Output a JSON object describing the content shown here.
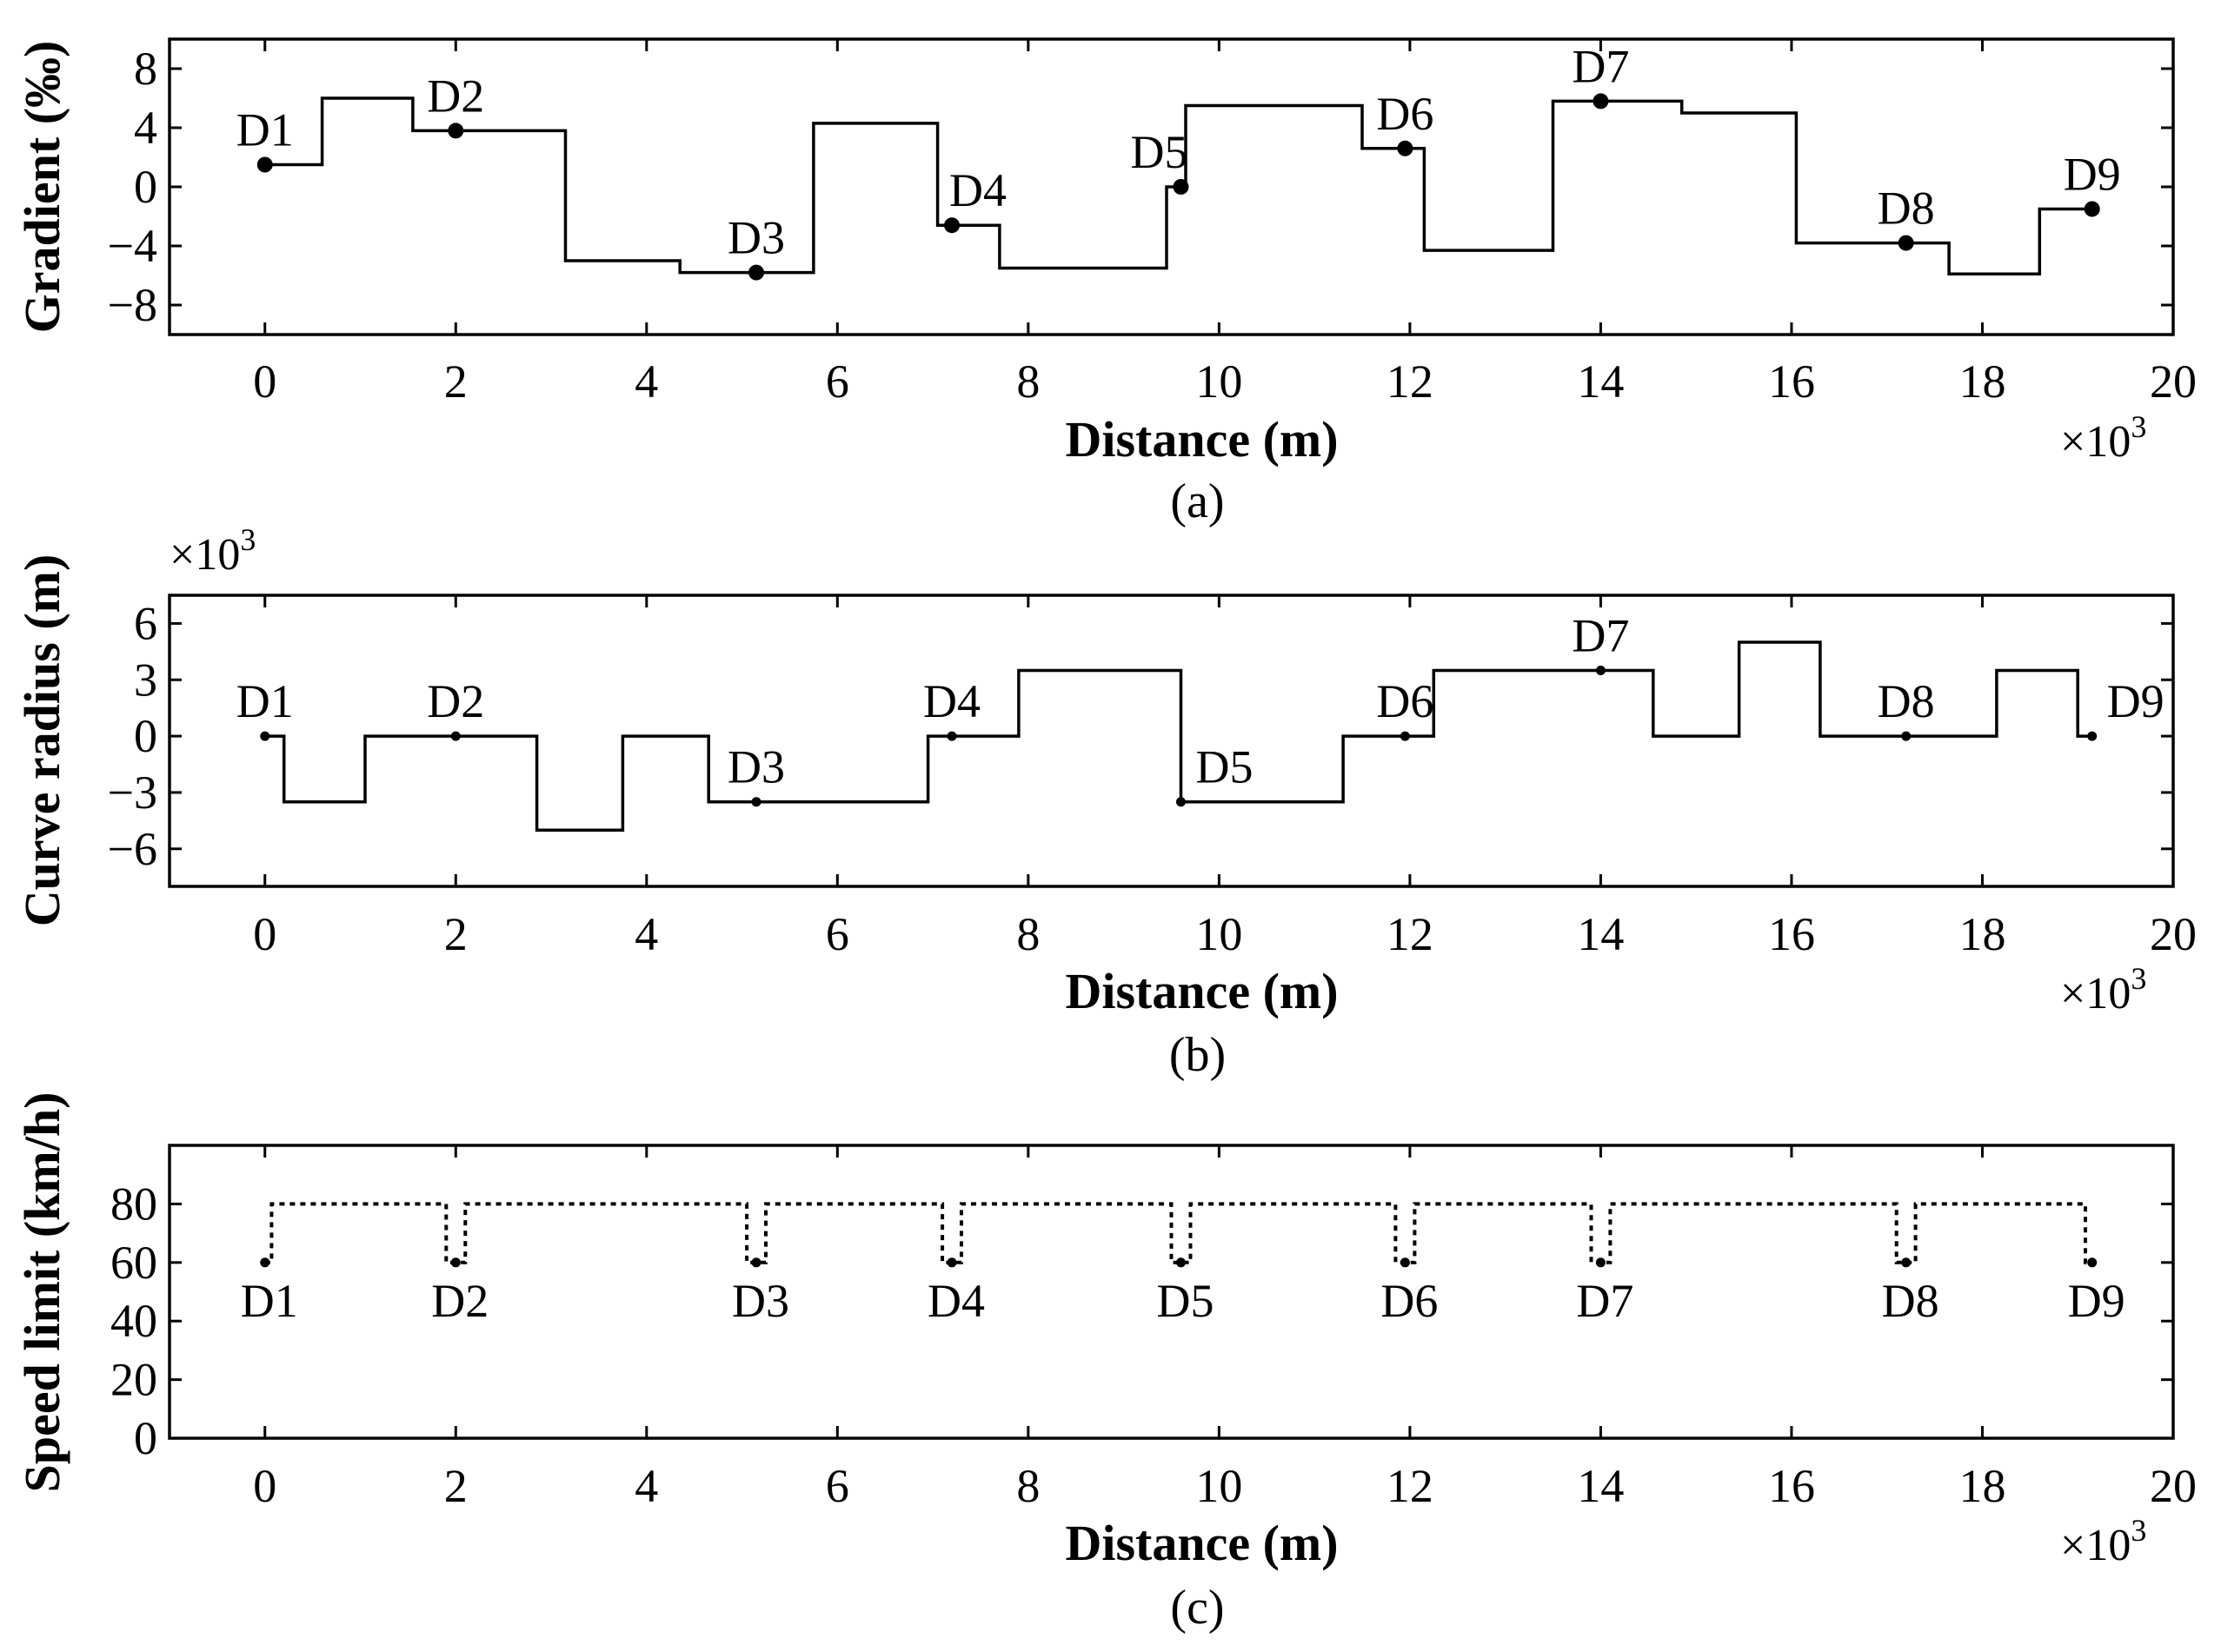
{
  "chart_data": [
    {
      "type": "line",
      "panel": "(a)",
      "caption": "(a)",
      "xlabel": "Distance (m)",
      "x_multiplier": "×10",
      "x_multiplier_exp": "3",
      "ylabel": "Gradient (‰)",
      "xlim": [
        -1,
        20
      ],
      "ylim": [
        -10,
        10
      ],
      "xticks": [
        0,
        2,
        4,
        6,
        8,
        10,
        12,
        14,
        16,
        18,
        20
      ],
      "yticks": [
        8,
        4,
        0,
        -4,
        -8
      ],
      "grid": false,
      "series": [
        {
          "style": "solid",
          "x": [
            0,
            0.6,
            0.6,
            1.55,
            1.55,
            3.15,
            3.15,
            4.35,
            4.35,
            5.75,
            5.75,
            7.05,
            7.05,
            7.7,
            7.7,
            9.45,
            9.45,
            9.65,
            9.65,
            11.5,
            11.5,
            12.15,
            12.15,
            13.5,
            13.5,
            14.85,
            14.85,
            16.05,
            16.05,
            17.65,
            17.65,
            18.6,
            18.6,
            19.15
          ],
          "y": [
            1.5,
            1.5,
            6,
            6,
            3.8,
            3.8,
            -5,
            -5,
            -5.8,
            -5.8,
            4.3,
            4.3,
            -2.6,
            -2.6,
            -5.5,
            -5.5,
            0,
            0,
            5.5,
            5.5,
            2.6,
            2.6,
            -4.3,
            -4.3,
            5.8,
            5.8,
            5,
            5,
            -3.8,
            -3.8,
            -5.9,
            -5.9,
            -1.5,
            -1.5
          ]
        }
      ],
      "stations": [
        {
          "label": "D1",
          "x": 0,
          "y": 1.5,
          "pos": "above"
        },
        {
          "label": "D2",
          "x": 2,
          "y": 3.8,
          "pos": "above"
        },
        {
          "label": "D3",
          "x": 5.15,
          "y": -5.8,
          "pos": "above"
        },
        {
          "label": "D4",
          "x": 7.2,
          "y": -2.6,
          "pos": "above-right"
        },
        {
          "label": "D5",
          "x": 9.6,
          "y": 0,
          "pos": "above-left"
        },
        {
          "label": "D6",
          "x": 11.95,
          "y": 2.6,
          "pos": "above"
        },
        {
          "label": "D7",
          "x": 14,
          "y": 5.8,
          "pos": "above"
        },
        {
          "label": "D8",
          "x": 17.2,
          "y": -3.8,
          "pos": "above"
        },
        {
          "label": "D9",
          "x": 19.15,
          "y": -1.5,
          "pos": "above"
        }
      ]
    },
    {
      "type": "line",
      "panel": "(b)",
      "caption": "(b)",
      "xlabel": "Distance (m)",
      "x_multiplier": "×10",
      "x_multiplier_exp": "3",
      "ylabel": "Curve radius (m)",
      "y_multiplier": "×10",
      "y_multiplier_exp": "3",
      "xlim": [
        -1,
        20
      ],
      "ylim": [
        -8,
        7.5
      ],
      "xticks": [
        0,
        2,
        4,
        6,
        8,
        10,
        12,
        14,
        16,
        18,
        20
      ],
      "yticks": [
        6,
        3,
        0,
        -3,
        -6
      ],
      "grid": false,
      "series": [
        {
          "style": "solid",
          "x": [
            0,
            0.2,
            0.2,
            1.05,
            1.05,
            2.85,
            2.85,
            3.75,
            3.75,
            4.65,
            4.65,
            6.95,
            6.95,
            7.9,
            7.9,
            9.6,
            9.6,
            11.3,
            11.3,
            12.25,
            12.25,
            14.55,
            14.55,
            15.45,
            15.45,
            16.3,
            16.3,
            18.15,
            18.15,
            19.0,
            19.0,
            19.15
          ],
          "y": [
            0,
            0,
            -3.5,
            -3.5,
            0,
            0,
            -5,
            -5,
            0,
            0,
            -3.5,
            -3.5,
            0,
            0,
            3.5,
            3.5,
            -3.5,
            -3.5,
            0,
            0,
            3.5,
            3.5,
            0,
            0,
            5,
            5,
            0,
            0,
            3.5,
            3.5,
            0,
            0
          ]
        }
      ],
      "stations": [
        {
          "label": "D1",
          "x": 0,
          "y": 0,
          "pos": "above"
        },
        {
          "label": "D2",
          "x": 2,
          "y": 0,
          "pos": "above"
        },
        {
          "label": "D3",
          "x": 5.15,
          "y": -3.5,
          "pos": "above"
        },
        {
          "label": "D4",
          "x": 7.2,
          "y": 0,
          "pos": "above"
        },
        {
          "label": "D5",
          "x": 9.6,
          "y": -3.5,
          "pos": "above-right"
        },
        {
          "label": "D6",
          "x": 11.95,
          "y": 0,
          "pos": "above"
        },
        {
          "label": "D7",
          "x": 14,
          "y": 3.5,
          "pos": "above"
        },
        {
          "label": "D8",
          "x": 17.2,
          "y": 0,
          "pos": "above"
        },
        {
          "label": "D9",
          "x": 19.15,
          "y": 0,
          "pos": "above-right"
        }
      ]
    },
    {
      "type": "line",
      "panel": "(c)",
      "caption": "(c)",
      "xlabel": "Distance (m)",
      "x_multiplier": "×10",
      "x_multiplier_exp": "3",
      "ylabel": "Speed limit (km/h)",
      "xlim": [
        -1,
        20
      ],
      "ylim": [
        0,
        100
      ],
      "xticks": [
        0,
        2,
        4,
        6,
        8,
        10,
        12,
        14,
        16,
        18,
        20
      ],
      "yticks": [
        80,
        60,
        40,
        20,
        0
      ],
      "grid": false,
      "series": [
        {
          "style": "dotted",
          "x": [
            0,
            0.07,
            0.07,
            1.9,
            1.9,
            2.1,
            2.1,
            5.05,
            5.05,
            5.25,
            5.25,
            7.1,
            7.1,
            7.3,
            7.3,
            9.5,
            9.5,
            9.7,
            9.7,
            11.85,
            11.85,
            12.05,
            12.05,
            13.9,
            13.9,
            14.1,
            14.1,
            17.1,
            17.1,
            17.3,
            17.3,
            19.08,
            19.08,
            19.15
          ],
          "y": [
            60,
            60,
            80,
            80,
            60,
            60,
            80,
            80,
            60,
            60,
            80,
            80,
            60,
            60,
            80,
            80,
            60,
            60,
            80,
            80,
            60,
            60,
            80,
            80,
            60,
            60,
            80,
            80,
            60,
            60,
            80,
            80,
            60,
            60
          ]
        }
      ],
      "stations": [
        {
          "label": "D1",
          "x": 0,
          "y": 60,
          "pos": "below"
        },
        {
          "label": "D2",
          "x": 2,
          "y": 60,
          "pos": "below"
        },
        {
          "label": "D3",
          "x": 5.15,
          "y": 60,
          "pos": "below"
        },
        {
          "label": "D4",
          "x": 7.2,
          "y": 60,
          "pos": "below"
        },
        {
          "label": "D5",
          "x": 9.6,
          "y": 60,
          "pos": "below"
        },
        {
          "label": "D6",
          "x": 11.95,
          "y": 60,
          "pos": "below"
        },
        {
          "label": "D7",
          "x": 14,
          "y": 60,
          "pos": "below"
        },
        {
          "label": "D8",
          "x": 17.2,
          "y": 60,
          "pos": "below"
        },
        {
          "label": "D9",
          "x": 19.15,
          "y": 60,
          "pos": "below"
        }
      ]
    }
  ]
}
